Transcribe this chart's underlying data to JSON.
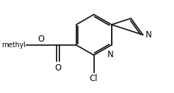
{
  "background": "#ffffff",
  "bond_color": "#1a1a1a",
  "bond_lw": 1.3,
  "text_color": "#000000",
  "font_size": 8.5,
  "figsize": [
    2.46,
    1.32
  ],
  "dpi": 100,
  "xlim": [
    0,
    10
  ],
  "ylim": [
    0,
    5.4
  ]
}
